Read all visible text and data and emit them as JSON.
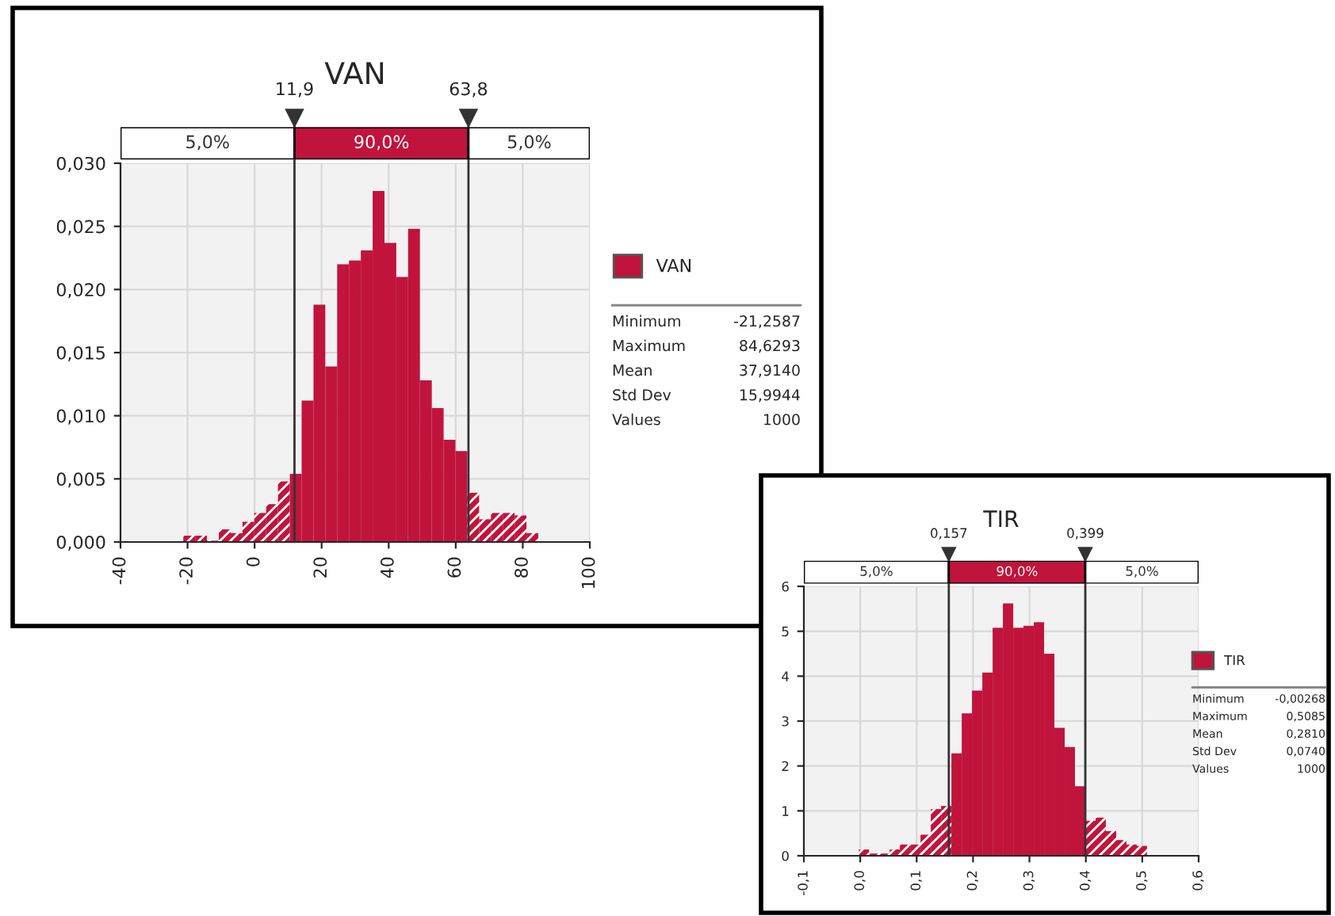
{
  "chart_data": [
    {
      "type": "histogram",
      "title": "VAN",
      "legend": "right",
      "bins": [
        -21.26,
        -17.73,
        -14.2,
        -10.67,
        -7.14,
        -3.61,
        -0.08,
        3.45,
        6.98,
        10.51,
        14.04,
        17.57,
        21.1,
        24.63,
        28.16,
        31.69,
        35.22,
        38.75,
        42.27,
        45.8,
        49.33,
        52.86,
        56.39,
        59.92,
        63.45,
        66.98,
        70.51,
        74.04,
        77.57,
        81.1,
        84.63
      ],
      "series": [
        {
          "name": "VAN",
          "color": "#c0143c",
          "values": [
            0.0005,
            0.0005,
            0.0001,
            0.001,
            0.0007,
            0.0016,
            0.0023,
            0.003,
            0.0048,
            0.0054,
            0.0112,
            0.0188,
            0.0139,
            0.022,
            0.0223,
            0.0231,
            0.0278,
            0.0237,
            0.021,
            0.0248,
            0.0128,
            0.0106,
            0.0081,
            0.0072,
            0.0039,
            0.0018,
            0.0023,
            0.0023,
            0.0021,
            0.0007
          ]
        }
      ],
      "xlim": [
        -40,
        100
      ],
      "xticks": [
        {
          "value": -40,
          "label": "-40"
        },
        {
          "value": -20,
          "label": "-20"
        },
        {
          "value": 0,
          "label": "0"
        },
        {
          "value": 20,
          "label": "20"
        },
        {
          "value": 40,
          "label": "40"
        },
        {
          "value": 60,
          "label": "60"
        },
        {
          "value": 80,
          "label": "80"
        },
        {
          "value": 100,
          "label": "100"
        }
      ],
      "ylim": [
        0,
        0.03
      ],
      "yticks": [
        {
          "value": 0,
          "label": "0,000"
        },
        {
          "value": 0.005,
          "label": "0,005"
        },
        {
          "value": 0.01,
          "label": "0,010"
        },
        {
          "value": 0.015,
          "label": "0,015"
        },
        {
          "value": 0.02,
          "label": "0,020"
        },
        {
          "value": 0.025,
          "label": "0,025"
        },
        {
          "value": 0.03,
          "label": "0,030"
        }
      ],
      "grid": true,
      "ref_lines": [
        {
          "axis": "x",
          "value": 11.9,
          "label": "11,9"
        },
        {
          "axis": "x",
          "value": 63.8,
          "label": "63,8"
        }
      ],
      "annotations": [
        "5,0%",
        "90,0%",
        "5,0%",
        "Minimum -21,2587",
        "Maximum 84,6293",
        "Mean 37,9140",
        "Std Dev 15,9944",
        "Values 1000"
      ]
    },
    {
      "type": "histogram",
      "title": "TIR",
      "legend": "right",
      "bins": [
        -0.0027,
        0.0156,
        0.0338,
        0.0521,
        0.0703,
        0.0886,
        0.1068,
        0.1251,
        0.1434,
        0.1616,
        0.1799,
        0.1981,
        0.2164,
        0.2347,
        0.2529,
        0.2712,
        0.2894,
        0.3077,
        0.326,
        0.3442,
        0.3625,
        0.3807,
        0.399,
        0.4173,
        0.4355,
        0.4538,
        0.472,
        0.4903,
        0.5085
      ],
      "series": [
        {
          "name": "TIR",
          "color": "#c0143c",
          "values": [
            0.14,
            0.05,
            0.05,
            0.14,
            0.25,
            0.25,
            0.47,
            1.04,
            1.11,
            2.28,
            3.17,
            3.68,
            4.08,
            5.08,
            5.62,
            5.08,
            5.12,
            5.2,
            4.5,
            2.85,
            2.42,
            1.55,
            0.78,
            0.85,
            0.55,
            0.35,
            0.25,
            0.22
          ]
        }
      ],
      "xlim": [
        -0.1,
        0.6
      ],
      "xticks": [
        {
          "value": -0.1,
          "label": "-0,1"
        },
        {
          "value": 0,
          "label": "0,0"
        },
        {
          "value": 0.1,
          "label": "0,1"
        },
        {
          "value": 0.2,
          "label": "0,2"
        },
        {
          "value": 0.3,
          "label": "0,3"
        },
        {
          "value": 0.4,
          "label": "0,4"
        },
        {
          "value": 0.5,
          "label": "0,5"
        },
        {
          "value": 0.6,
          "label": "0,6"
        }
      ],
      "ylim": [
        0,
        6
      ],
      "yticks": [
        0,
        1,
        2,
        3,
        4,
        5,
        6
      ],
      "grid": true,
      "ref_lines": [
        {
          "axis": "x",
          "value": 0.157,
          "label": "0,157"
        },
        {
          "axis": "x",
          "value": 0.399,
          "label": "0,399"
        }
      ],
      "annotations": [
        "5,0%",
        "90,0%",
        "5,0%",
        "Minimum -0,00268",
        "Maximum 0,5085",
        "Mean 0,2810",
        "Std Dev 0,0740",
        "Values 1000"
      ]
    }
  ]
}
